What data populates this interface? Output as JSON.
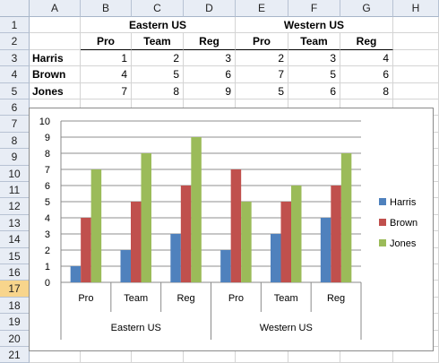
{
  "columns": [
    "A",
    "B",
    "C",
    "D",
    "E",
    "F",
    "G",
    "H"
  ],
  "rows": [
    "1",
    "2",
    "3",
    "4",
    "5",
    "6",
    "7",
    "8",
    "9",
    "10",
    "11",
    "12",
    "13",
    "14",
    "15",
    "16",
    "17",
    "18",
    "19",
    "20",
    "21"
  ],
  "selected_row": "17",
  "table": {
    "group_headers": [
      "Eastern US",
      "Western US"
    ],
    "sub_headers": [
      "Pro",
      "Team",
      "Reg",
      "Pro",
      "Team",
      "Reg"
    ],
    "data_rows": [
      {
        "name": "Harris",
        "values": [
          "1",
          "2",
          "3",
          "2",
          "3",
          "4"
        ]
      },
      {
        "name": "Brown",
        "values": [
          "4",
          "5",
          "6",
          "7",
          "5",
          "6"
        ]
      },
      {
        "name": "Jones",
        "values": [
          "7",
          "8",
          "9",
          "5",
          "6",
          "8"
        ]
      }
    ]
  },
  "chart_data": {
    "type": "bar",
    "groups": [
      {
        "label": "Eastern US",
        "categories": [
          "Pro",
          "Team",
          "Reg"
        ]
      },
      {
        "label": "Western US",
        "categories": [
          "Pro",
          "Team",
          "Reg"
        ]
      }
    ],
    "categories": [
      "Pro",
      "Team",
      "Reg",
      "Pro",
      "Team",
      "Reg"
    ],
    "series": [
      {
        "name": "Harris",
        "color": "#4f81bd",
        "values": [
          1,
          2,
          3,
          2,
          3,
          4
        ]
      },
      {
        "name": "Brown",
        "color": "#c0504d",
        "values": [
          4,
          5,
          6,
          7,
          5,
          6
        ]
      },
      {
        "name": "Jones",
        "color": "#9bbb59",
        "values": [
          7,
          8,
          9,
          5,
          6,
          8
        ]
      }
    ],
    "ylim": [
      0,
      10
    ],
    "yticks": [
      "0",
      "1",
      "2",
      "3",
      "4",
      "5",
      "6",
      "7",
      "8",
      "9",
      "10"
    ],
    "grid": true,
    "legend_position": "right"
  }
}
